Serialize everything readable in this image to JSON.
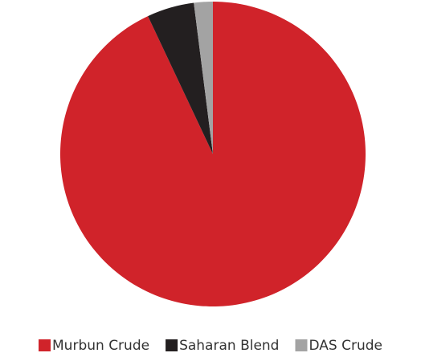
{
  "chart_data": {
    "type": "pie",
    "categories": [
      "Murbun Crude",
      "Saharan Blend",
      "DAS Crude"
    ],
    "values": [
      93,
      5,
      2
    ],
    "colors": [
      "#d0232a",
      "#231f20",
      "#a3a3a3"
    ],
    "legend": "bottom"
  }
}
